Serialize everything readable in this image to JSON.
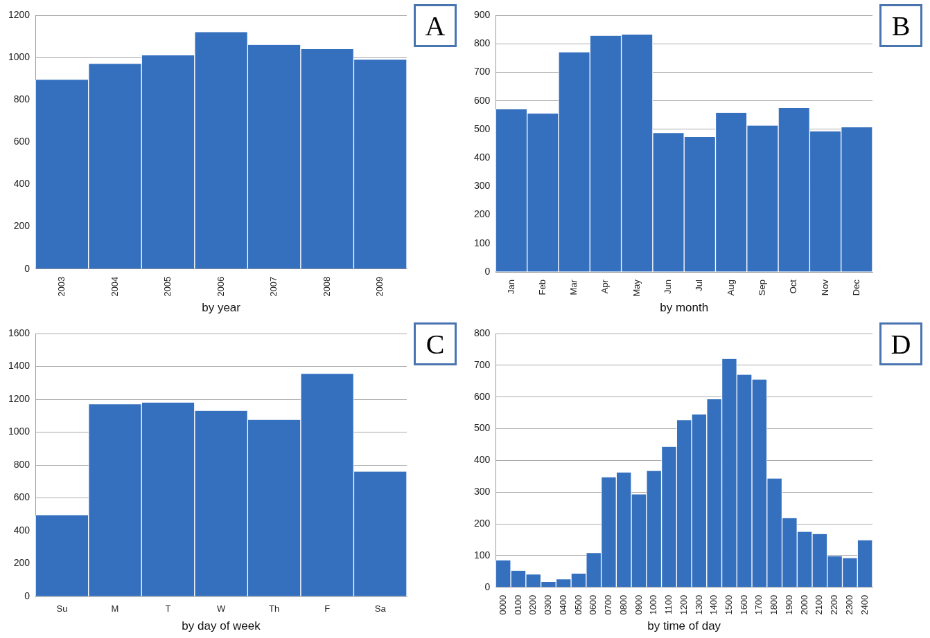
{
  "chart_data": [
    {
      "type": "bar",
      "xlabel": "by year",
      "annotations": [
        "A"
      ],
      "categories": [
        "2003",
        "2004",
        "2005",
        "2006",
        "2007",
        "2008",
        "2009"
      ],
      "values": [
        895,
        970,
        1010,
        1120,
        1060,
        1040,
        990
      ],
      "color": "#3570bf",
      "ylim": [
        0,
        1200
      ],
      "yticks": [
        0,
        200,
        400,
        600,
        800,
        1000,
        1200
      ],
      "grid": "y"
    },
    {
      "type": "bar",
      "xlabel": "by month",
      "annotations": [
        "B"
      ],
      "categories": [
        "Jan",
        "Feb",
        "Mar",
        "Apr",
        "May",
        "Jun",
        "Jul",
        "Aug",
        "Sep",
        "Oct",
        "Nov",
        "Dec"
      ],
      "values": [
        570,
        555,
        770,
        828,
        832,
        487,
        473,
        558,
        513,
        575,
        493,
        507
      ],
      "color": "#3570bf",
      "ylim": [
        0,
        900
      ],
      "yticks": [
        0,
        100,
        200,
        300,
        400,
        500,
        600,
        700,
        800,
        900
      ],
      "grid": "y"
    },
    {
      "type": "bar",
      "xlabel": "by day of week",
      "annotations": [
        "C"
      ],
      "categories": [
        "Su",
        "M",
        "T",
        "W",
        "Th",
        "F",
        "Sa"
      ],
      "values": [
        495,
        1170,
        1180,
        1130,
        1075,
        1355,
        760
      ],
      "color": "#3570bf",
      "ylim": [
        0,
        1600
      ],
      "yticks": [
        0,
        200,
        400,
        600,
        800,
        1000,
        1200,
        1400,
        1600
      ],
      "grid": "y"
    },
    {
      "type": "bar",
      "xlabel": "by time of day",
      "annotations": [
        "D"
      ],
      "categories": [
        "0000",
        "0100",
        "0200",
        "0300",
        "0400",
        "0500",
        "0600",
        "0700",
        "0800",
        "0900",
        "1000",
        "1100",
        "1200",
        "1300",
        "1400",
        "1500",
        "1600",
        "1700",
        "1800",
        "1900",
        "2000",
        "2100",
        "2200",
        "2300",
        "2400"
      ],
      "values": [
        85,
        52,
        40,
        17,
        25,
        43,
        108,
        347,
        362,
        293,
        367,
        443,
        527,
        545,
        593,
        720,
        670,
        655,
        343,
        218,
        175,
        168,
        98,
        92,
        148
      ],
      "color": "#3570bf",
      "ylim": [
        0,
        800
      ],
      "yticks": [
        0,
        100,
        200,
        300,
        400,
        500,
        600,
        700,
        800
      ],
      "grid": "y"
    }
  ]
}
